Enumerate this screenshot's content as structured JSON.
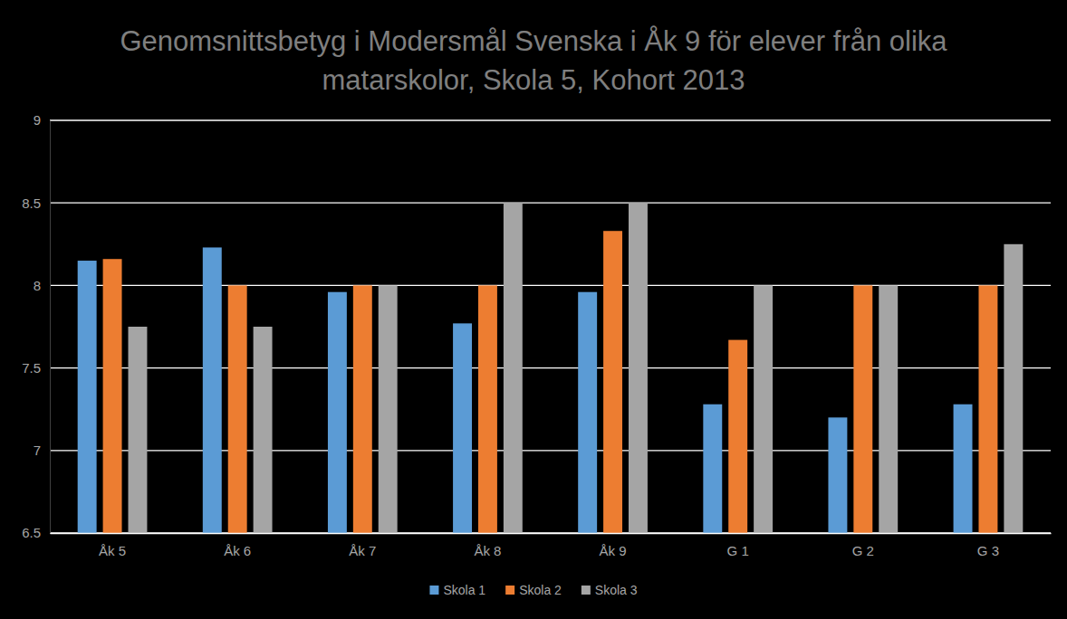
{
  "chart_data": {
    "type": "bar",
    "title": "Genomsnittsbetyg i Modersmål Svenska i Åk 9 för elever från olika matarskolor, Skola 5, Kohort 2013",
    "categories": [
      "Åk 5",
      "Åk 6",
      "Åk 7",
      "Åk 8",
      "Åk 9",
      "G 1",
      "G 2",
      "G 3"
    ],
    "series": [
      {
        "name": "Skola 1",
        "color": "#5b9bd5",
        "values": [
          8.15,
          8.23,
          7.96,
          7.77,
          7.96,
          7.28,
          7.2,
          7.28
        ]
      },
      {
        "name": "Skola 2",
        "color": "#ed7d31",
        "values": [
          8.16,
          8.0,
          8.0,
          8.0,
          8.33,
          7.67,
          8.0,
          8.0
        ]
      },
      {
        "name": "Skola 3",
        "color": "#a5a5a5",
        "values": [
          7.75,
          7.75,
          8.0,
          8.5,
          8.5,
          8.0,
          8.0,
          8.25
        ]
      }
    ],
    "ylim": [
      6.5,
      9
    ],
    "yticks": [
      6.5,
      7,
      7.5,
      8,
      8.5,
      9
    ],
    "grid": true,
    "legend": "bottom"
  }
}
